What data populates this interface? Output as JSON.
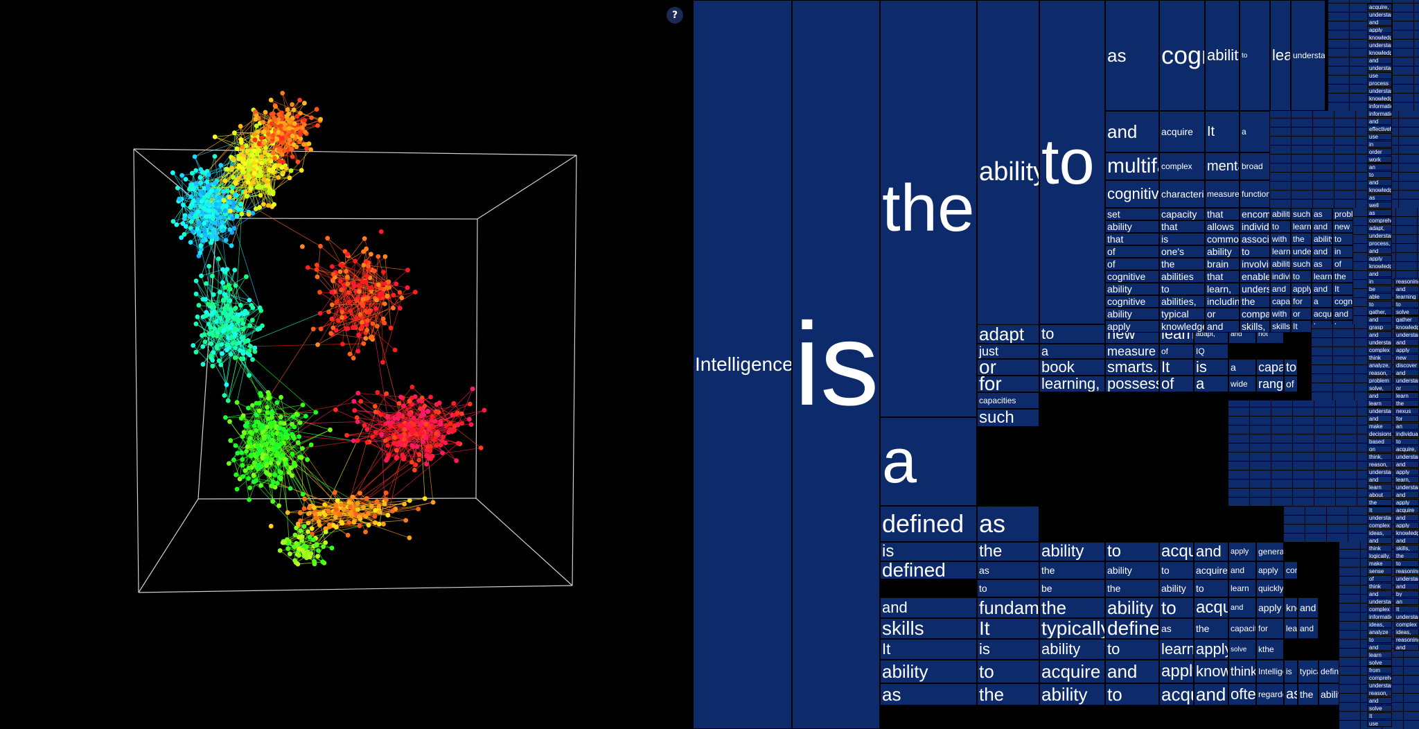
{
  "help_label": "?",
  "words": [
    "Intelligence",
    "is",
    "the",
    "a",
    "ability",
    "to",
    "defined",
    "as",
    "is",
    "the",
    "ability",
    "to",
    "acquire",
    "and",
    "apply",
    "generally",
    "defined",
    "as",
    "the",
    "ability",
    "to",
    "acquire",
    "and",
    "apply",
    "considered",
    "to",
    "be",
    "the",
    "ability",
    "to",
    "learn",
    "quickly",
    "and",
    "fundamentally",
    "the",
    "ability",
    "to",
    "acquire",
    "and",
    "apply",
    "knowledge",
    "and",
    "skills",
    "It",
    "typically",
    "defined",
    "as",
    "the",
    "capacity",
    "for",
    "learning,",
    "and",
    "It",
    "is",
    "ability",
    "to",
    "learn,",
    "apply",
    "solve",
    "kthe",
    "ability",
    "to",
    "acquire",
    "and",
    "apply",
    "knowledge,",
    "think",
    "Intelligence",
    "is",
    "typically",
    "defined",
    "as",
    "the",
    "ability",
    "to",
    "acquire",
    "and",
    "often",
    "regarded",
    "as",
    "the",
    "ability",
    "to",
    "adapt",
    "to",
    "new",
    "learn,",
    "adapt,",
    "and",
    "not",
    "just",
    "a",
    "measure",
    "of",
    "IQ",
    "or",
    "book",
    "smarts.",
    "It",
    "is",
    "a",
    "capacity",
    "to",
    "for",
    "learning,",
    "possession",
    "of",
    "a",
    "wide",
    "range",
    "of",
    "capacities",
    "such",
    "as",
    "cognitive",
    "ability",
    "to",
    "learn,",
    "understand,",
    "and",
    "acquire",
    "It",
    "a",
    "multifaceted",
    "complex",
    "mental",
    "broad",
    "cognitive",
    "characteristic",
    "measure",
    "function",
    "set",
    "capacity",
    "that",
    "encompasses",
    "abilities",
    "such",
    "as",
    "problem",
    "ability",
    "that",
    "allows",
    "individuals",
    "to",
    "learn",
    "and",
    "new",
    "that",
    "is",
    "commonly",
    "associated",
    "with",
    "the",
    "ability",
    "to",
    "of",
    "one's",
    "ability",
    "to",
    "learn,",
    "understand,",
    "and",
    "in",
    "of",
    "the",
    "brain",
    "involving",
    "abilities",
    "such",
    "as",
    "of",
    "cognitive",
    "abilities",
    "that",
    "enables",
    "individuals",
    "to",
    "learn,",
    "the",
    "ability",
    "to",
    "learn,",
    "understand,",
    "and",
    "apply",
    "and",
    "It",
    "cognitive",
    "abilities,",
    "including",
    "the",
    "capacity",
    "for",
    "a",
    "cognitive",
    "ability",
    "typical",
    "or",
    "comparable",
    "with",
    "or",
    "acquire",
    "and",
    "apply",
    "knowledge,",
    "and",
    "skills,",
    "skills.",
    "It",
    "learn",
    "learn,",
    "acquire,",
    "understand,",
    "and",
    "apply",
    "knowledge,",
    "understanding",
    "knowledge",
    "and",
    "understand",
    "use",
    "process",
    "understand",
    "knowledge",
    "information",
    "information,",
    "and",
    "effectively",
    "use",
    "in",
    "order",
    "work",
    "an",
    "to",
    "and",
    "knowledge,",
    "as",
    "well",
    "as",
    "comprehend,",
    "adapt,",
    "understand",
    "process,",
    "and",
    "apply",
    "knowledge",
    "and",
    "in",
    "be",
    "able",
    "to",
    "gather,",
    "and",
    "grasp",
    "and",
    "understand",
    "complex",
    "think",
    "analyze,",
    "reason,",
    "problem",
    "solve,",
    "and",
    "learn",
    "understand,",
    "and",
    "make",
    "decisions",
    "based",
    "on",
    "think,",
    "reason,",
    "understand,",
    "and",
    "learn",
    "about",
    "the",
    "It",
    "understand",
    "complex",
    "ideas,",
    "and",
    "think",
    "logically,",
    "make",
    "sense",
    "of",
    "think",
    "and",
    "understand",
    "complex",
    "information,",
    "ideas,",
    "analyze",
    "to",
    "and",
    "learn",
    "solve",
    "from",
    "comprehend,",
    "understand,",
    "reason,",
    "and",
    "solve",
    "It",
    "use",
    "reasoning",
    "and",
    "learning",
    "to",
    "solve",
    "gather",
    "knowledge,",
    "understand",
    "and",
    "apply",
    "new",
    "discover",
    "and",
    "understand",
    "or",
    "learn",
    "the",
    "nexus",
    "for",
    "an",
    "individual",
    "to",
    "acquire,",
    "understand,",
    "and",
    "apply",
    "learn,",
    "understand,",
    "and",
    "apply",
    "acquire",
    "and",
    "apply",
    "knowledge",
    "and",
    "skills,",
    "the",
    "to",
    "reasoning,",
    "understanding,",
    "and",
    "by",
    "an",
    "It",
    "understanding",
    "complex",
    "ideas,",
    "reasoning,",
    "and"
  ]
}
